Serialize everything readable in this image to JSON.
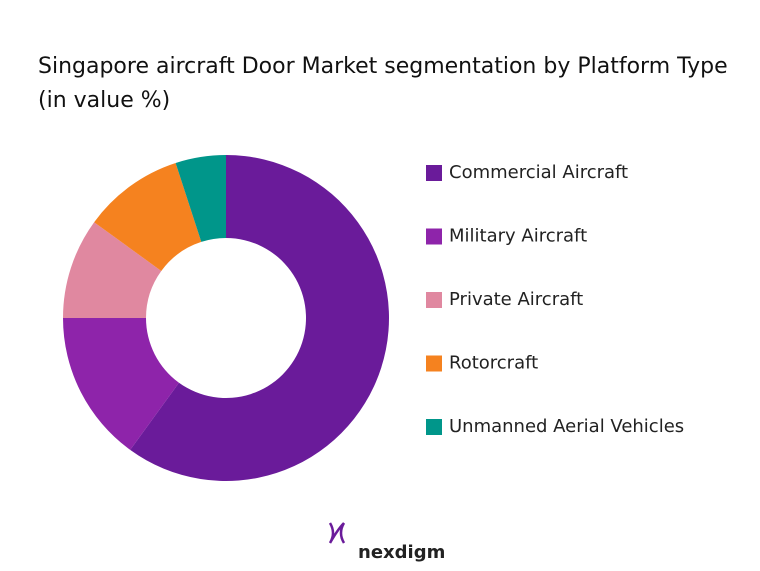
{
  "chart_data": {
    "type": "donut",
    "title": "Singapore aircraft Door Market segmentation by Platform Type (in value %)",
    "categories": [
      "Commercial Aircraft",
      "Military Aircraft",
      "Private Aircraft",
      "Rotorcraft",
      "Unmanned Aerial Vehicles"
    ],
    "values": [
      60,
      15,
      10,
      10,
      5
    ],
    "colors": [
      "#6a1b9a",
      "#8e24aa",
      "#e088a0",
      "#f5821f",
      "#00968a"
    ],
    "legend": "right"
  },
  "logo": "nexdigm"
}
